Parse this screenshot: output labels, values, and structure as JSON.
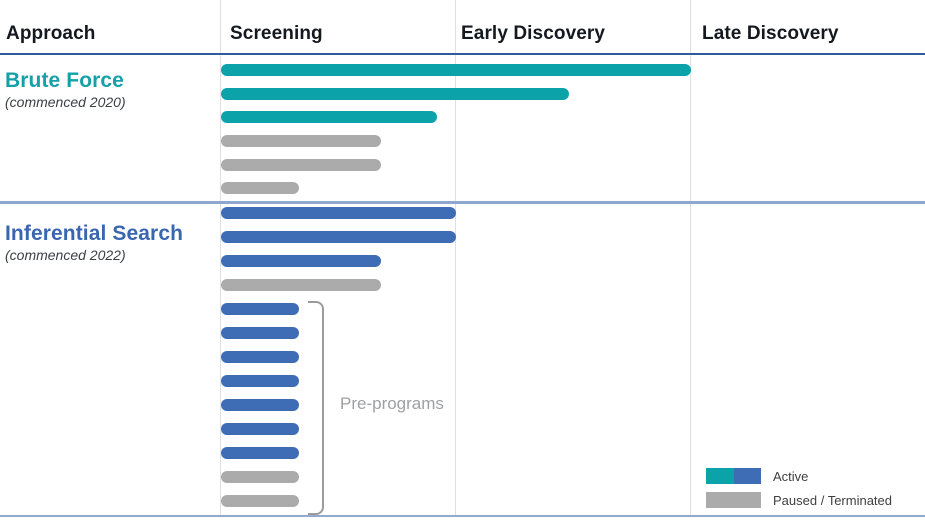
{
  "header": {
    "columns": [
      "Approach",
      "Screening",
      "Early Discovery",
      "Late Discovery"
    ]
  },
  "chart_data": {
    "type": "bar",
    "description": "Drug discovery pipeline progress chart. Horizontal bars show how far each program has progressed across discovery stages. Bar length is measured in stage units: 1.0 = full width of the Screening column, 2.0 = reached end of Early Discovery.",
    "stages": [
      "Screening",
      "Early Discovery",
      "Late Discovery"
    ],
    "colors": {
      "brute_force_active": "#0ba3a9",
      "inferential_active": "#3e6cb5",
      "paused": "#ababab"
    },
    "sections": [
      {
        "approach": "Brute Force",
        "commenced": "(commenced 2020)",
        "active_color": "#0ba3a9",
        "bars": [
          {
            "status": "active",
            "stage_extent": 2.0
          },
          {
            "status": "active",
            "stage_extent": 1.48
          },
          {
            "status": "active",
            "stage_extent": 0.92
          },
          {
            "status": "paused",
            "stage_extent": 0.68
          },
          {
            "status": "paused",
            "stage_extent": 0.68
          },
          {
            "status": "paused",
            "stage_extent": 0.33
          }
        ]
      },
      {
        "approach": "Inferential Search",
        "commenced": "(commenced 2022)",
        "active_color": "#3e6cb5",
        "bars": [
          {
            "status": "active",
            "stage_extent": 1.0
          },
          {
            "status": "active",
            "stage_extent": 1.0
          },
          {
            "status": "active",
            "stage_extent": 0.68
          },
          {
            "status": "paused",
            "stage_extent": 0.68
          },
          {
            "status": "active",
            "stage_extent": 0.33,
            "group": "pre-programs"
          },
          {
            "status": "active",
            "stage_extent": 0.33,
            "group": "pre-programs"
          },
          {
            "status": "active",
            "stage_extent": 0.33,
            "group": "pre-programs"
          },
          {
            "status": "active",
            "stage_extent": 0.33,
            "group": "pre-programs"
          },
          {
            "status": "active",
            "stage_extent": 0.33,
            "group": "pre-programs"
          },
          {
            "status": "active",
            "stage_extent": 0.33,
            "group": "pre-programs"
          },
          {
            "status": "active",
            "stage_extent": 0.33,
            "group": "pre-programs"
          },
          {
            "status": "paused",
            "stage_extent": 0.33,
            "group": "pre-programs"
          },
          {
            "status": "paused",
            "stage_extent": 0.33,
            "group": "pre-programs"
          }
        ]
      }
    ],
    "pre_programs_label": "Pre-programs",
    "legend": [
      {
        "label": "Active",
        "colors": [
          "#0ba3a9",
          "#3e6cb5"
        ]
      },
      {
        "label": "Paused / Terminated",
        "colors": [
          "#ababab"
        ]
      }
    ],
    "layout_hints": {
      "legend_position": "bottom-right",
      "grid": "vertical stage dividers only"
    }
  }
}
